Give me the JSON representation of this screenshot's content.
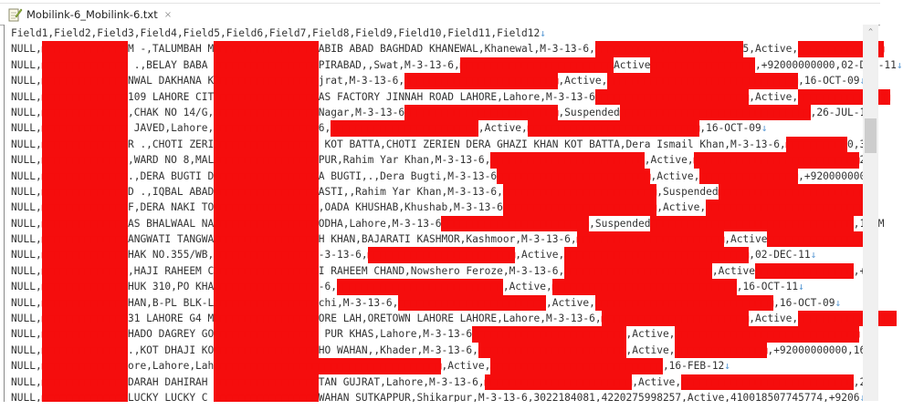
{
  "tab": {
    "title": "Mobilink-6_Mobilink-6.txt",
    "close": "×",
    "icon": "text-file-edit-icon"
  },
  "editor": {
    "redaction_color": "#f50d0d",
    "eol_marker": "↓",
    "lines": [
      "Field1,Field2,Field3,Field4,Field5,Field6,Field7,Field8,Field9,Field10,Field11,Field12↓",
      "NULL,■■■■■■■■■■■■■■M -,TALUMBAH M■■■■■■■■■■■■■■■■■ABIB ABAD BAGHDAD KHANEWAL,Khanewal,M-3-13-6,■■■■■■■■■■■■■■■■■■■■■■■■5,Active,■■■■■■■■■■■■■■",
      "NULL,■■■■■■■■■■■■■■ .,BELAY BABA ■■■■■■■■■■■■■■■■■PIRABAD,,Swat,M-3-13-6,■■■■■■■■■■■■■■■■■■■■■■■■■Active■■■■■■■■■■■■■■■■■,+92000000000,02-DEC-11↓",
      "NULL,■■■■■■■■■■■■■■NWAL DAKHANA K■■■■■■■■■■■■■■■■■jrat,M-3-13-6,■■■■■■■■■■■■■■■■■■■■■■■■■,Active,■■■■■■■■■■■■■■■■■■■■■■■■■■■■■■■,16-OCT-09↓",
      "NULL,■■■■■■■■■■■■■■109 LAHORE CIT■■■■■■■■■■■■■■■■■AS FACTORY JINNAH ROAD LAHORE,Lahore,M-3-13-6■■■■■■■■■■■■■■■■■■■■■■■■■,Active,■■■■■■■■■■■■■■■",
      "NULL,■■■■■■■■■■■■■■,CHAK NO 14/G,■■■■■■■■■■■■■■■■■Nagar,M-3-13-6■■■■■■■■■■■■■■■■■■■■■■■■■,Suspended■■■■■■■■■■■■■■■■■■■■■■■■■■■■■■■,26-JUL-1",
      "NULL,■■■■■■■■■■■■■■ JAVED,Lahore,■■■■■■■■■■■■■■■■■6,■■■■■■■■■■■■■■■■■■■■■■■■,Active,■■■■■■■■■■■■■■■■■■■■■■■■■■■■,16-OCT-09↓",
      "NULL,■■■■■■■■■■■■■■R .,CHOTI ZERI■■■■■■■■■■■■■■■■■ KOT BATTA,CHOTI ZERIEN DERA GHAZI KHAN KOT BATTA,Dera Ismail Khan,M-3-13-6,■■■■■■■■■■0,32",
      "NULL,■■■■■■■■■■■■■■,WARD NO 8,MAL■■■■■■■■■■■■■■■■■PUR,Rahim Yar Khan,M-3-13-6,■■■■■■■■■■■■■■■■■■■■■■■■■,Active,■■■■■■■■■■■■■■■■■■■■■■■■■■■2,",
      "NULL,■■■■■■■■■■■■■■.,DERA BUGTI D■■■■■■■■■■■■■■■■■A BUGTI,.,Dera Bugti,M-3-13-6■■■■■■■■■■■■■■■■■■■■■■■■■,Active,■■■■■■■■■■■■■■■■,+9200000000",
      "NULL,■■■■■■■■■■■■■■D .,IQBAL ABAD■■■■■■■■■■■■■■■■■ASTI,,Rahim Yar Khan,M-3-13-6,■■■■■■■■■■■■■■■■■■■■■■■■■,Suspended■■■■■■■■■■■■■■■■■■■■■■■■",
      "NULL,■■■■■■■■■■■■■■F,DERA NAKI TO■■■■■■■■■■■■■■■■■,OADA KHUSHAB,Khushab,M-3-13-6■■■■■■■■■■■■■■■■■■■■■■■■■,Active,■■■■■■■■■■■■■■■■■■■■■■■■■■■",
      "NULL,■■■■■■■■■■■■■■AS BHALWAAL NA■■■■■■■■■■■■■■■■■ODHA,Lahore,M-3-13-6■■■■■■■■■■■■■■■■■■■■■■■■,Suspended■■■■■■■■■■■■■■■■■■■■■■■■■■■■■■■■■,16-M",
      "NULL,■■■■■■■■■■■■■■ANGWATI TANGWA■■■■■■■■■■■■■■■■■H KHAN,BAJARATI KASHMOR,Kashmoor,M-3-13-6,■■■■■■■■■■■■■■■■■■■■■■■■,Active■■■■■■■■■■■■■■■■■",
      "NULL,■■■■■■■■■■■■■■HAK NO.355/WB,■■■■■■■■■■■■■■■■■-3-13-6,■■■■■■■■■■■■■■■■■■■■■■■■,Active,■■■■■■■■■■■■■■■■■■■■■■■■■■■■■■,02-DEC-11↓",
      "NULL,■■■■■■■■■■■■■■,HAJI RAHEEM C■■■■■■■■■■■■■■■■■I RAHEEM CHAND,Nowshero Feroze,M-3-13-6,■■■■■■■■■■■■■■■■■■■■■■■■,Active■■■■■■■■■■■■■■■■,+",
      "NULL,■■■■■■■■■■■■■■HUK 310,PO KHA■■■■■■■■■■■■■■■■■-6,■■■■■■■■■■■■■■■■■■■■■■■■■■■,Active,■■■■■■■■■■■■■■■■■■■■■■■■■■■■■■,16-OCT-11↓",
      "NULL,■■■■■■■■■■■■■■HAN,B-PL BLK-L■■■■■■■■■■■■■■■■■chi,M-3-13-6,■■■■■■■■■■■■■■■■■■■■■■■■,Active,■■■■■■■■■■■■■■■■■■■■■■■■■■■■■,16-OCT-09↓",
      "NULL,■■■■■■■■■■■■■■31 LAHORE G4 M■■■■■■■■■■■■■■■■■ORE LAH,ORETOWN LAHORE LAHORE,Lahore,M-3-13-6,■■■■■■■■■■■■■■■■■■■■■■■■,Active,■■■■■■■■■■■■■■■■",
      "NULL,■■■■■■■■■■■■■■HADO DAGREY GO■■■■■■■■■■■■■■■■■ PUR KHAS,Lahore,M-3-13-6■■■■■■■■■■■■■■■■■■■■■■■■■,Active,■■■■■■■■■■■■■■■■■■■■■■■■■■■■■■",
      "NULL,■■■■■■■■■■■■■■.,KOT DHAJI KO■■■■■■■■■■■■■■■■■HO WAHAN,,Khader,M-3-13-6,■■■■■■■■■■■■■■■■■■■■■■■■,Active,■■■■■■■■■■■■■■■,+92000000000,16",
      "NULL,■■■■■■■■■■■■■■ore,Lahore,Lah■■■■■■■■■■■■■■■■■■■■■■■■■■■■■■■■■■■■■,Active,■■■■■■■■■■■■■■■■■■■■■■■■■■■■,16-FEB-12↓",
      "NULL,■■■■■■■■■■■■■■DARAH DAHIRAH ■■■■■■■■■■■■■■■■■TAN GUJRAT,Lahore,M-3-13-6,■■■■■■■■■■■■■■■■■■■■■■■■,Active,■■■■■■■■■■■■■■■■■■■■■■■■■■■■,2",
      "NULL,■■■■■■■■■■■■■■LUCKY LUCKY C ■■■■■■■■■■■■■■■■■WAHAN SUTKAPPUR,Shikarpur,M-3-13-6,3022184081,4220275998257,Active,410018507745774,+9206↓"
    ]
  },
  "scrollbar": {
    "up_arrow": "^"
  }
}
